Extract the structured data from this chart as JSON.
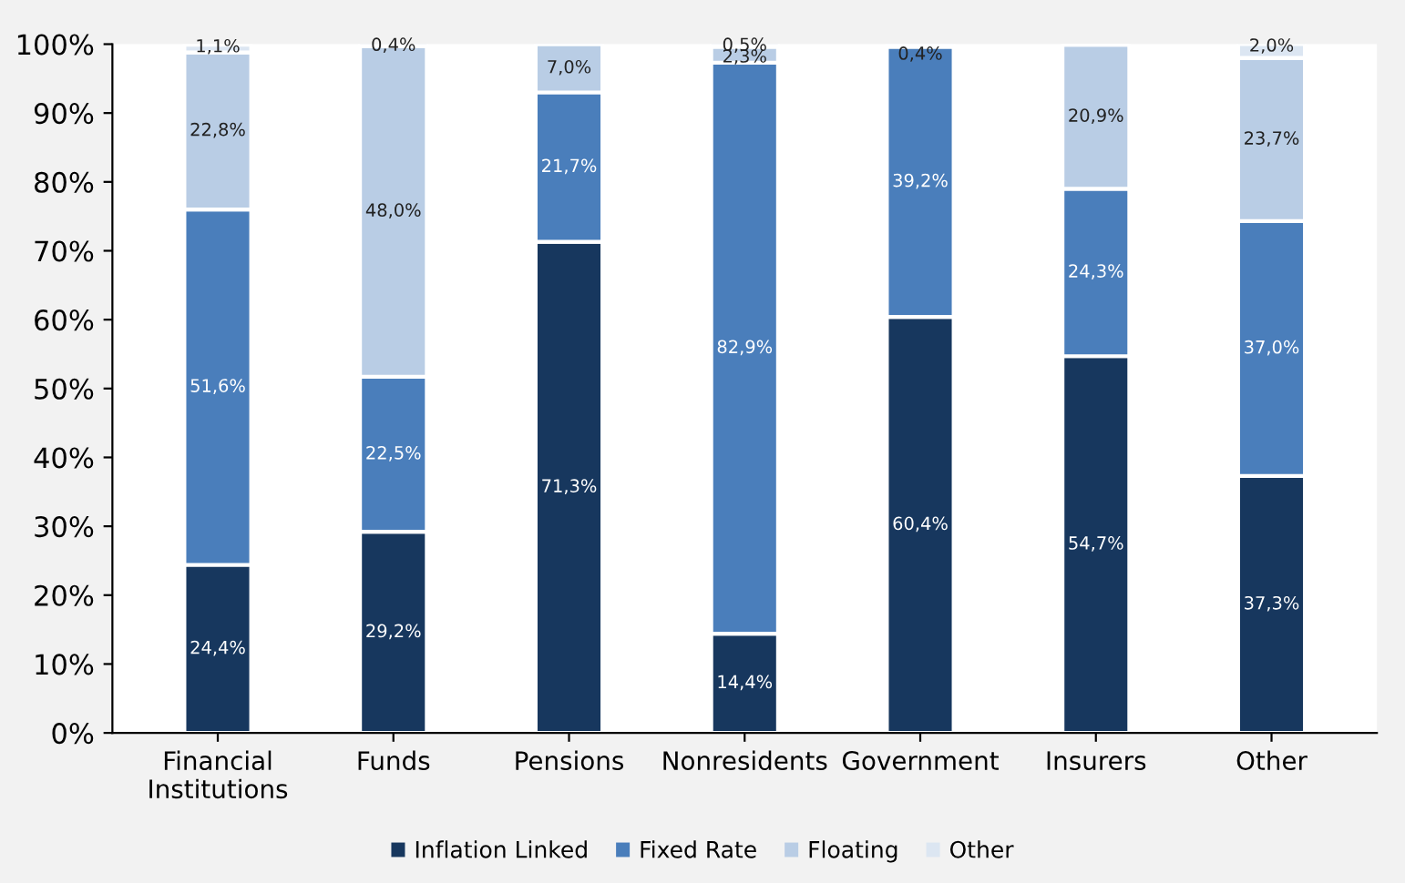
{
  "chart_data": {
    "type": "bar",
    "stacked": true,
    "categories": [
      "Financial\nInstitutions",
      "Funds",
      "Pensions",
      "Nonresidents",
      "Government",
      "Insurers",
      "Other"
    ],
    "series": [
      {
        "name": "Inflation Linked",
        "color": "#17375e",
        "values": [
          24.4,
          29.2,
          71.3,
          14.4,
          60.4,
          54.7,
          37.3
        ],
        "value_labels": [
          "24,4%",
          "29,2%",
          "71,3%",
          "14,4%",
          "60,4%",
          "54,7%",
          "37,3%"
        ]
      },
      {
        "name": "Fixed Rate",
        "color": "#4a7ebb",
        "values": [
          51.6,
          22.5,
          21.7,
          82.9,
          39.2,
          24.3,
          37.0
        ],
        "value_labels": [
          "51,6%",
          "22,5%",
          "21,7%",
          "82,9%",
          "39,2%",
          "24,3%",
          "37,0%"
        ]
      },
      {
        "name": "Floating",
        "color": "#b9cde5",
        "values": [
          22.8,
          48.0,
          7.0,
          2.3,
          0.4,
          20.9,
          23.7
        ],
        "value_labels": [
          "22,8%",
          "48,0%",
          "7,0%",
          "2,3%",
          "0,4%",
          "20,9%",
          "23,7%"
        ]
      },
      {
        "name": "Other",
        "color": "#dce6f2",
        "values": [
          1.1,
          0.4,
          null,
          0.5,
          null,
          null,
          2.0
        ],
        "value_labels": [
          "1,1%",
          "0,4%",
          null,
          "0,5%",
          null,
          null,
          "2,0%"
        ]
      }
    ],
    "ylim": [
      0,
      100
    ],
    "yticks": [
      {
        "value": 0,
        "label": "0%"
      },
      {
        "value": 10,
        "label": "10%"
      },
      {
        "value": 20,
        "label": "20%"
      },
      {
        "value": 30,
        "label": "30%"
      },
      {
        "value": 40,
        "label": "40%"
      },
      {
        "value": 50,
        "label": "50%"
      },
      {
        "value": 60,
        "label": "60%"
      },
      {
        "value": 70,
        "label": "70%"
      },
      {
        "value": 80,
        "label": "80%"
      },
      {
        "value": 90,
        "label": "90%"
      },
      {
        "value": 100,
        "label": "100%"
      }
    ],
    "grid": false,
    "legend": "bottom"
  }
}
